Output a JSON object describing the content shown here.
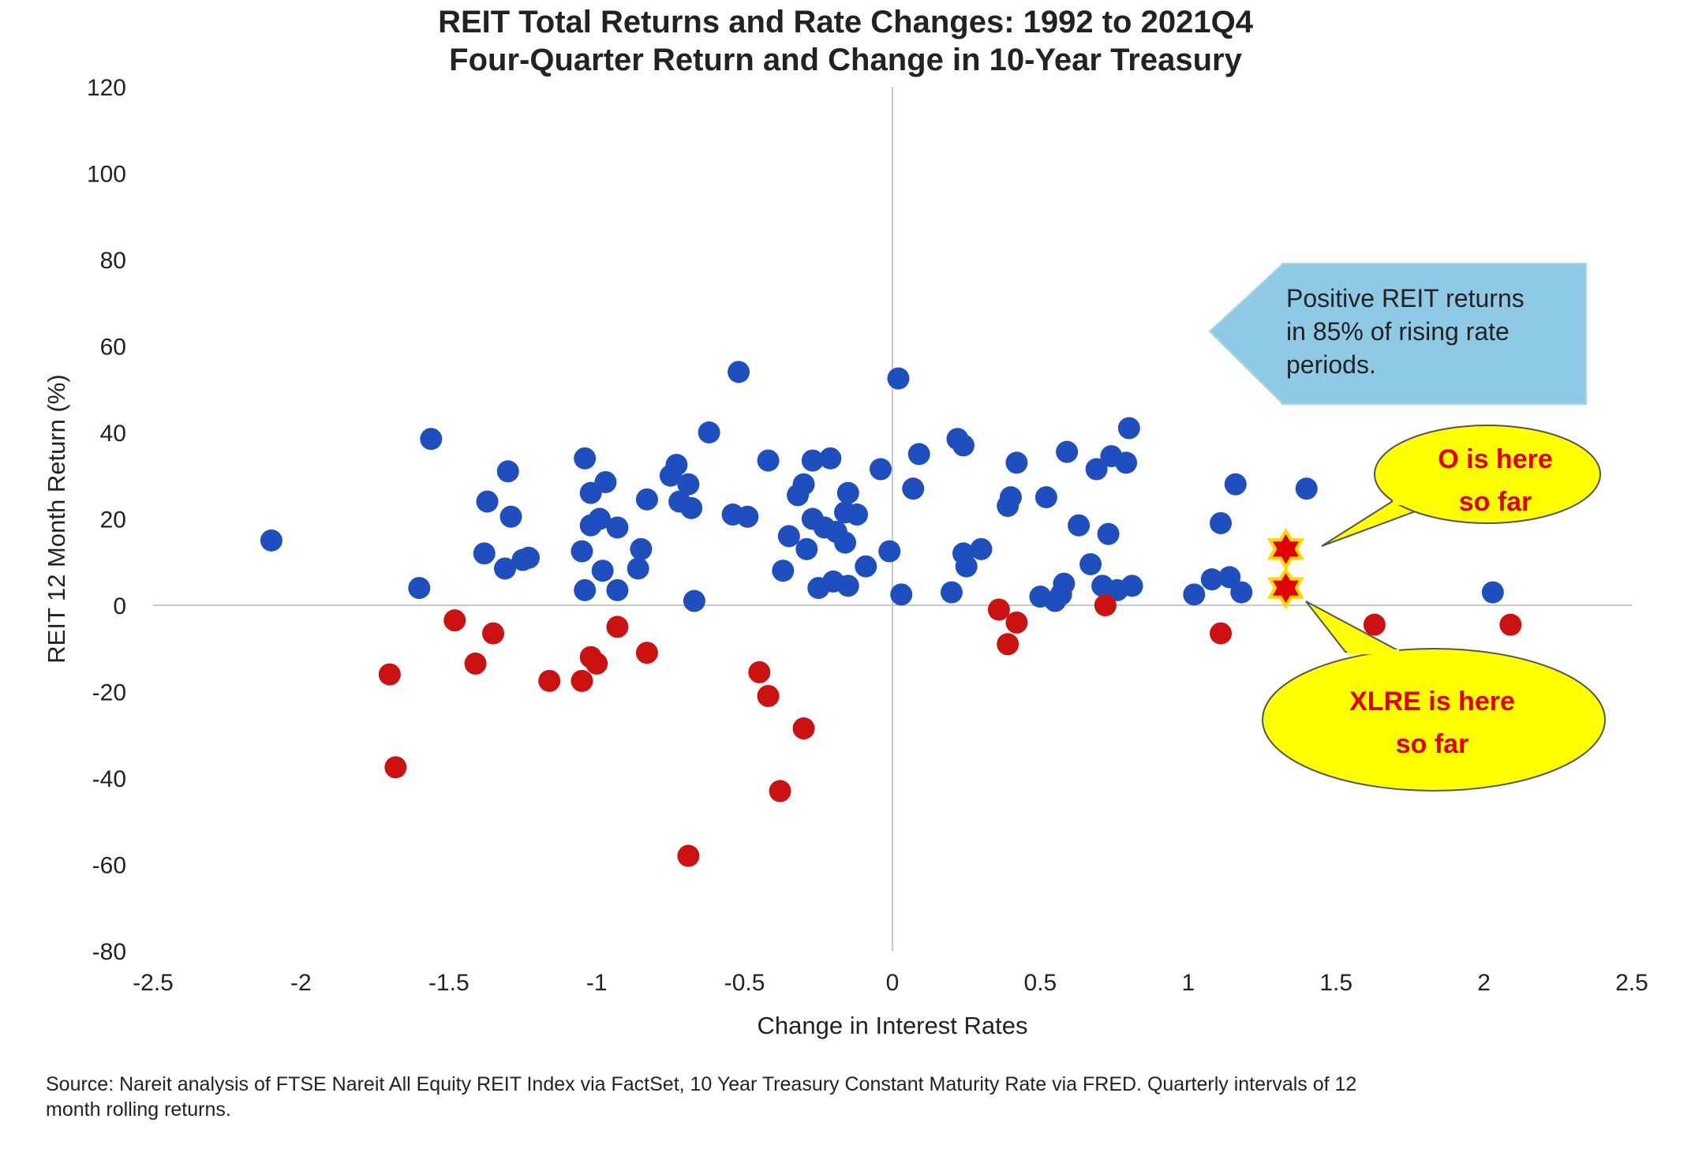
{
  "chart_data": {
    "type": "scatter",
    "title": "REIT Total Returns and Rate Changes: 1992 to 2021Q4",
    "subtitle": "Four-Quarter Return and Change in 10-Year Treasury",
    "xlabel": "Change in Interest Rates",
    "ylabel": "REIT 12 Month Return (%)",
    "xlim": [
      -2.5,
      2.5
    ],
    "ylim": [
      -80,
      120
    ],
    "xticks": [
      -2.5,
      -2,
      -1.5,
      -1,
      -0.5,
      0,
      0.5,
      1,
      1.5,
      2,
      2.5
    ],
    "xtick_labels": [
      "-2.5",
      "-2",
      "-1.5",
      "-1",
      "-0.5",
      "0",
      "0.5",
      "1",
      "1.5",
      "2",
      "2.5"
    ],
    "yticks": [
      -80,
      -60,
      -40,
      -20,
      0,
      20,
      40,
      60,
      80,
      100,
      120
    ],
    "ytick_labels": [
      "-80",
      "-60",
      "-40",
      "-20",
      "0",
      "20",
      "40",
      "60",
      "80",
      "100",
      "120"
    ],
    "grid": false,
    "series": [
      {
        "color": "#1f4fbf",
        "points": [
          [
            -2.1,
            15
          ],
          [
            -1.6,
            4
          ],
          [
            -1.56,
            38.5
          ],
          [
            -1.38,
            12
          ],
          [
            -1.37,
            24
          ],
          [
            -1.31,
            8.5
          ],
          [
            -1.3,
            31
          ],
          [
            -1.29,
            20.5
          ],
          [
            -1.25,
            10.5
          ],
          [
            -1.23,
            11
          ],
          [
            -1.04,
            34
          ],
          [
            -1.05,
            12.5
          ],
          [
            -1.04,
            3.5
          ],
          [
            -1.02,
            26
          ],
          [
            -1.02,
            18.5
          ],
          [
            -0.99,
            20
          ],
          [
            -0.98,
            8
          ],
          [
            -0.97,
            28.5
          ],
          [
            -0.93,
            18
          ],
          [
            -0.93,
            3.5
          ],
          [
            -0.86,
            8.5
          ],
          [
            -0.85,
            13
          ],
          [
            -0.83,
            24.5
          ],
          [
            -0.75,
            30
          ],
          [
            -0.73,
            32.5
          ],
          [
            -0.72,
            24
          ],
          [
            -0.69,
            28
          ],
          [
            -0.68,
            22.5
          ],
          [
            -0.67,
            1
          ],
          [
            -0.62,
            40
          ],
          [
            -0.54,
            21
          ],
          [
            -0.52,
            54
          ],
          [
            -0.49,
            20.5
          ],
          [
            -0.42,
            33.5
          ],
          [
            -0.37,
            8
          ],
          [
            -0.35,
            16
          ],
          [
            -0.32,
            25.5
          ],
          [
            -0.3,
            28
          ],
          [
            -0.29,
            13
          ],
          [
            -0.27,
            20
          ],
          [
            -0.27,
            33.5
          ],
          [
            -0.25,
            4
          ],
          [
            -0.23,
            18
          ],
          [
            -0.21,
            34
          ],
          [
            -0.2,
            5.5
          ],
          [
            -0.19,
            17
          ],
          [
            -0.16,
            21.5
          ],
          [
            -0.16,
            14.5
          ],
          [
            -0.15,
            4.5
          ],
          [
            -0.15,
            26
          ],
          [
            -0.12,
            21
          ],
          [
            -0.09,
            9
          ],
          [
            -0.04,
            31.5
          ],
          [
            -0.01,
            12.5
          ],
          [
            0.02,
            52.5
          ],
          [
            0.03,
            2.5
          ],
          [
            0.07,
            27
          ],
          [
            0.09,
            35
          ],
          [
            0.2,
            3
          ],
          [
            0.22,
            38.5
          ],
          [
            0.24,
            37
          ],
          [
            0.24,
            12
          ],
          [
            0.25,
            9
          ],
          [
            0.3,
            13
          ],
          [
            0.39,
            23
          ],
          [
            0.4,
            25
          ],
          [
            0.42,
            33
          ],
          [
            0.5,
            2
          ],
          [
            0.52,
            25
          ],
          [
            0.55,
            1
          ],
          [
            0.57,
            2.5
          ],
          [
            0.58,
            5
          ],
          [
            0.59,
            35.5
          ],
          [
            0.63,
            18.5
          ],
          [
            0.67,
            9.5
          ],
          [
            0.69,
            31.5
          ],
          [
            0.71,
            4.5
          ],
          [
            0.73,
            16.5
          ],
          [
            0.74,
            34.5
          ],
          [
            0.76,
            3.5
          ],
          [
            0.79,
            33
          ],
          [
            0.8,
            41
          ],
          [
            0.81,
            4.5
          ],
          [
            1.02,
            2.5
          ],
          [
            1.08,
            6
          ],
          [
            1.11,
            19
          ],
          [
            1.14,
            6.5
          ],
          [
            1.16,
            28
          ],
          [
            1.18,
            3
          ],
          [
            1.4,
            27
          ],
          [
            2.03,
            3
          ]
        ]
      },
      {
        "color": "#cc1111",
        "points": [
          [
            -1.7,
            -16
          ],
          [
            -1.68,
            -37.5
          ],
          [
            -1.48,
            -3.5
          ],
          [
            -1.41,
            -13.5
          ],
          [
            -1.35,
            -6.5
          ],
          [
            -1.16,
            -17.5
          ],
          [
            -1.05,
            -17.5
          ],
          [
            -1.02,
            -12
          ],
          [
            -1.0,
            -13.5
          ],
          [
            -0.93,
            -5
          ],
          [
            -0.83,
            -11
          ],
          [
            -0.69,
            -58
          ],
          [
            -0.45,
            -15.5
          ],
          [
            -0.42,
            -21
          ],
          [
            -0.38,
            -43
          ],
          [
            -0.3,
            -28.5
          ],
          [
            0.36,
            -1
          ],
          [
            0.39,
            -9
          ],
          [
            0.42,
            -4
          ],
          [
            0.72,
            0
          ],
          [
            1.11,
            -6.5
          ],
          [
            1.63,
            -4.5
          ],
          [
            2.09,
            -4.5
          ]
        ]
      }
    ],
    "markers": [
      {
        "shape": "star",
        "x": 1.33,
        "y": 13,
        "color": "#e00000",
        "outline": "#ffd700"
      },
      {
        "shape": "star",
        "x": 1.33,
        "y": 4,
        "color": "#e00000",
        "outline": "#ffd700"
      }
    ],
    "annotations": {
      "arrow_box": {
        "text_lines": [
          "Positive REIT returns",
          "in 85% of rising rate",
          "periods."
        ],
        "fill": "#8ecae6"
      },
      "callout_o": {
        "text_lines": [
          "O is here",
          "so far"
        ],
        "fill": "#ffff00",
        "text_color": "#e00000"
      },
      "callout_xlre": {
        "text_lines": [
          "XLRE is here",
          "so far"
        ],
        "fill": "#ffff00",
        "text_color": "#e00000"
      }
    }
  },
  "source": {
    "line1": "Source: Nareit analysis of FTSE Nareit All Equity REIT Index via FactSet, 10 Year Treasury Constant Maturity Rate via FRED. Quarterly intervals of 12",
    "line2": "month rolling returns."
  }
}
